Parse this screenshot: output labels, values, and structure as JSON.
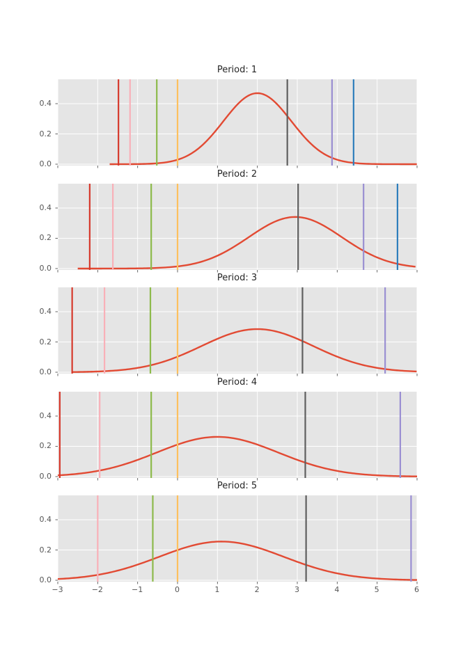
{
  "colors": {
    "figure_bg": "#ffffff",
    "axes_bg": "#e5e5e5",
    "grid": "#ffffff",
    "tick_label": "#555555",
    "title": "#262626",
    "curve": "#e24a33",
    "vline_palette": {
      "red": "#d6392c",
      "pink": "#f9b0b8",
      "green": "#8dba4b",
      "orange": "#fdc05e",
      "black": "#5f5f5f",
      "purple": "#9a8fd2",
      "blue": "#2e7ebc"
    }
  },
  "axes": {
    "xlim": [
      -3,
      6
    ],
    "ylim": [
      0,
      0.561
    ],
    "xticks": [
      -3,
      -2,
      -1,
      0,
      1,
      2,
      3,
      4,
      5,
      6
    ],
    "xtick_labels": [
      "−3",
      "−2",
      "−1",
      "0",
      "1",
      "2",
      "3",
      "4",
      "5",
      "6"
    ],
    "yticks": [
      0.0,
      0.2,
      0.4
    ],
    "ytick_labels": [
      "0.0",
      "0.2",
      "0.4"
    ],
    "grid": true,
    "legend": "none"
  },
  "chart_data": [
    {
      "type": "line",
      "title": "Period: 1",
      "curve": {
        "shape": "normal_pdf",
        "mean": 2.0,
        "std": 0.85,
        "peak": 0.469,
        "x_start": -1.7,
        "x_end": 6
      },
      "vlines": [
        {
          "id": "red",
          "x": -1.48
        },
        {
          "id": "pink",
          "x": -1.19
        },
        {
          "id": "green",
          "x": -0.52
        },
        {
          "id": "orange",
          "x": 0.0
        },
        {
          "id": "black",
          "x": 2.75
        },
        {
          "id": "purple",
          "x": 3.87
        },
        {
          "id": "blue",
          "x": 4.41
        }
      ]
    },
    {
      "type": "line",
      "title": "Period: 2",
      "curve": {
        "shape": "normal_pdf",
        "mean": 2.95,
        "std": 1.17,
        "peak": 0.341,
        "x_start": -2.5,
        "x_end": 6
      },
      "vlines": [
        {
          "id": "red",
          "x": -2.2
        },
        {
          "id": "pink",
          "x": -1.62
        },
        {
          "id": "green",
          "x": -0.66
        },
        {
          "id": "orange",
          "x": 0.0
        },
        {
          "id": "black",
          "x": 3.02
        },
        {
          "id": "purple",
          "x": 4.66
        },
        {
          "id": "blue",
          "x": 5.51
        }
      ]
    },
    {
      "type": "line",
      "title": "Period: 3",
      "curve": {
        "shape": "normal_pdf",
        "mean": 2.0,
        "std": 1.4,
        "peak": 0.285,
        "x_start": -2.65,
        "x_end": 6
      },
      "vlines": [
        {
          "id": "red",
          "x": -2.64
        },
        {
          "id": "pink",
          "x": -1.83
        },
        {
          "id": "green",
          "x": -0.68
        },
        {
          "id": "orange",
          "x": 0.0
        },
        {
          "id": "black",
          "x": 3.13
        },
        {
          "id": "purple",
          "x": 5.2
        }
      ]
    },
    {
      "type": "line",
      "title": "Period: 4",
      "curve": {
        "shape": "normal_pdf",
        "mean": 1.0,
        "std": 1.52,
        "peak": 0.262,
        "x_start": -3,
        "x_end": 6
      },
      "vlines": [
        {
          "id": "red",
          "x": -2.95
        },
        {
          "id": "pink",
          "x": -1.95
        },
        {
          "id": "green",
          "x": -0.66
        },
        {
          "id": "orange",
          "x": 0.0
        },
        {
          "id": "black",
          "x": 3.2
        },
        {
          "id": "purple",
          "x": 5.58
        }
      ]
    },
    {
      "type": "line",
      "title": "Period: 5",
      "curve": {
        "shape": "normal_pdf",
        "mean": 1.1,
        "std": 1.56,
        "peak": 0.256,
        "x_start": -3,
        "x_end": 6
      },
      "vlines": [
        {
          "id": "pink",
          "x": -2.0
        },
        {
          "id": "green",
          "x": -0.62
        },
        {
          "id": "orange",
          "x": 0.0
        },
        {
          "id": "black",
          "x": 3.22
        },
        {
          "id": "purple",
          "x": 5.85
        }
      ]
    }
  ]
}
